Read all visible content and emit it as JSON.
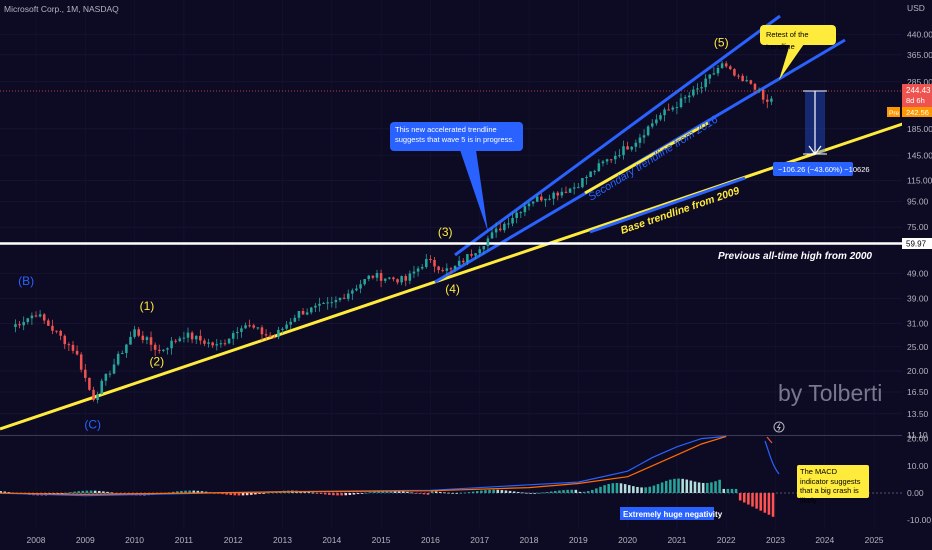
{
  "header": {
    "symbol": "Microsoft Corp., 1M, NASDAQ",
    "currency": "USD"
  },
  "colors": {
    "bg": "#0d0a24",
    "up": "#26a69a",
    "down": "#ef5350",
    "yellow": "#ffeb3b",
    "blue": "#2962ff",
    "white": "#ffffff",
    "macd": "#2962ff",
    "signal": "#ff6d00",
    "histPos": "#b2dfdb",
    "histNeg": "#ff5252"
  },
  "watermark": "by Tolberti",
  "price_labels": {
    "last": "244.43",
    "countdown": "8d 6h",
    "pre_tag": "Pre",
    "pre_value": "242.56",
    "prev_ath": "59.97"
  },
  "annotations": {
    "callout_trendline": "This new accelerated trendline suggests that wave 5 is in progress.",
    "callout_retest": "Retest of the trendline",
    "secondary_trendline": "Secondary trendline from 2016",
    "base_trendline": "Base trendline from 2009",
    "prev_ath": "Previous all-time high from 2000",
    "measure": "−106.26 (−43.60%) −10626",
    "macd_note": "The MACD indicator suggests that a big crash is likely",
    "negativity": "Extremely huge negativity"
  },
  "chart_data": [
    {
      "type": "candlestick",
      "title": "Microsoft Corp., 1M, NASDAQ",
      "ylabel": "USD",
      "y_scale": "log",
      "y_ticks": [
        "440.00",
        "365.00",
        "285.00",
        "185.00",
        "145.00",
        "115.00",
        "95.00",
        "75.00",
        "59.97",
        "49.00",
        "39.00",
        "31.00",
        "25.00",
        "20.00",
        "16.50",
        "13.50",
        "11.10"
      ],
      "x_ticks": [
        "2008",
        "2009",
        "2010",
        "2011",
        "2012",
        "2013",
        "2014",
        "2015",
        "2016",
        "2017",
        "2018",
        "2019",
        "2020",
        "2021",
        "2022",
        "2023",
        "2024",
        "2025"
      ],
      "key_points": [
        {
          "date": "2007.5",
          "close": 30
        },
        {
          "date": "2008.0",
          "close": 34
        },
        {
          "date": "2008.8",
          "close": 24
        },
        {
          "date": "2009.15",
          "close": 15.5
        },
        {
          "date": "2010.0",
          "close": 29
        },
        {
          "date": "2010.5",
          "close": 24
        },
        {
          "date": "2011.0",
          "close": 28
        },
        {
          "date": "2011.7",
          "close": 25
        },
        {
          "date": "2012.2",
          "close": 31
        },
        {
          "date": "2012.8",
          "close": 27
        },
        {
          "date": "2013.3",
          "close": 34
        },
        {
          "date": "2014.0",
          "close": 37
        },
        {
          "date": "2014.8",
          "close": 48
        },
        {
          "date": "2015.5",
          "close": 46
        },
        {
          "date": "2015.9",
          "close": 55
        },
        {
          "date": "2016.4",
          "close": 50
        },
        {
          "date": "2017.0",
          "close": 63
        },
        {
          "date": "2018.0",
          "close": 95
        },
        {
          "date": "2018.9",
          "close": 108
        },
        {
          "date": "2019.5",
          "close": 135
        },
        {
          "date": "2020.15",
          "close": 165
        },
        {
          "date": "2020.6",
          "close": 205
        },
        {
          "date": "2021.0",
          "close": 232
        },
        {
          "date": "2021.5",
          "close": 272
        },
        {
          "date": "2021.9",
          "close": 335
        },
        {
          "date": "2022.3",
          "close": 285
        },
        {
          "date": "2022.55",
          "close": 280
        },
        {
          "date": "2022.8",
          "close": 232
        },
        {
          "date": "2022.95",
          "close": 244.43
        }
      ],
      "wave_labels": [
        {
          "label": "(B)",
          "date": "2007.8",
          "price": 44
        },
        {
          "label": "(C)",
          "date": "2009.15",
          "price": 11.8
        },
        {
          "label": "(1)",
          "date": "2010.25",
          "price": 35
        },
        {
          "label": "(2)",
          "date": "2010.45",
          "price": 21
        },
        {
          "label": "(3)",
          "date": "2016.3",
          "price": 69
        },
        {
          "label": "(4)",
          "date": "2016.45",
          "price": 41
        },
        {
          "label": "(5)",
          "date": "2021.9",
          "price": 395
        }
      ]
    },
    {
      "type": "macd",
      "y_ticks": [
        "20.00",
        "10.00",
        "0.00",
        "-10.00"
      ],
      "ylim": [
        -12,
        20
      ],
      "series": [
        {
          "name": "MACD",
          "points": [
            [
              "2007.2",
              0
            ],
            [
              "2009.0",
              -1
            ],
            [
              "2013.0",
              0.5
            ],
            [
              "2016.0",
              1
            ],
            [
              "2018.0",
              3
            ],
            [
              "2019.0",
              4
            ],
            [
              "2020.0",
              8
            ],
            [
              "2020.5",
              13
            ],
            [
              "2021.0",
              17
            ],
            [
              "2021.5",
              20
            ],
            [
              "2022.0",
              22
            ]
          ]
        },
        {
          "name": "Signal",
          "points": [
            [
              "2007.2",
              0
            ],
            [
              "2009.0",
              -0.5
            ],
            [
              "2013.0",
              0.4
            ],
            [
              "2016.0",
              0.8
            ],
            [
              "2018.0",
              2
            ],
            [
              "2019.0",
              3.5
            ],
            [
              "2020.0",
              6
            ],
            [
              "2020.5",
              10
            ],
            [
              "2021.0",
              14
            ],
            [
              "2021.5",
              18
            ],
            [
              "2022.0",
              21
            ]
          ]
        }
      ]
    }
  ]
}
